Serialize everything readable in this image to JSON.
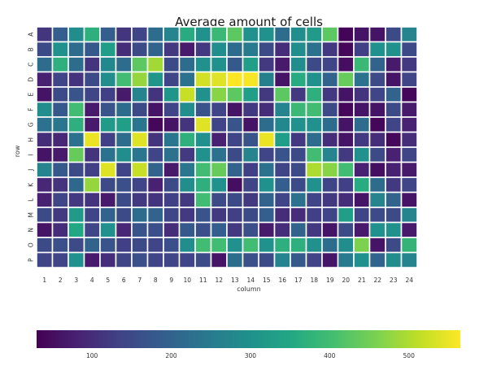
{
  "chart_data": {
    "type": "heatmap",
    "title": "Average amount of cells",
    "xlabel": "column",
    "ylabel": "row",
    "columns": [
      "1",
      "2",
      "3",
      "4",
      "5",
      "6",
      "7",
      "8",
      "9",
      "10",
      "11",
      "12",
      "13",
      "14",
      "15",
      "16",
      "17",
      "18",
      "19",
      "20",
      "21",
      "22",
      "23",
      "24"
    ],
    "rows": [
      "A",
      "B",
      "C",
      "D",
      "E",
      "F",
      "G",
      "H",
      "I",
      "J",
      "K",
      "L",
      "M",
      "N",
      "O",
      "P"
    ],
    "values": [
      [
        115,
        190,
        290,
        370,
        190,
        115,
        140,
        220,
        270,
        360,
        300,
        390,
        430,
        300,
        300,
        220,
        290,
        320,
        430,
        35,
        60,
        60,
        150,
        270
      ],
      [
        150,
        300,
        220,
        180,
        330,
        100,
        150,
        200,
        120,
        70,
        120,
        290,
        220,
        250,
        150,
        100,
        290,
        230,
        120,
        40,
        130,
        300,
        300,
        150
      ],
      [
        220,
        370,
        220,
        110,
        280,
        220,
        430,
        490,
        150,
        220,
        300,
        300,
        180,
        330,
        120,
        70,
        290,
        150,
        140,
        50,
        390,
        200,
        70,
        120
      ],
      [
        80,
        140,
        110,
        150,
        290,
        400,
        480,
        310,
        140,
        230,
        530,
        540,
        570,
        560,
        260,
        60,
        360,
        300,
        200,
        440,
        230,
        150,
        60,
        140
      ],
      [
        60,
        150,
        170,
        140,
        130,
        70,
        270,
        110,
        310,
        520,
        300,
        470,
        430,
        330,
        120,
        430,
        120,
        370,
        120,
        60,
        110,
        140,
        200,
        40
      ],
      [
        290,
        180,
        400,
        70,
        170,
        220,
        150,
        60,
        140,
        290,
        170,
        140,
        60,
        120,
        100,
        270,
        390,
        400,
        150,
        40,
        60,
        60,
        150,
        70
      ],
      [
        230,
        240,
        370,
        70,
        320,
        330,
        240,
        40,
        60,
        110,
        540,
        140,
        170,
        60,
        220,
        280,
        300,
        300,
        220,
        60,
        220,
        40,
        140,
        80
      ],
      [
        100,
        90,
        230,
        550,
        130,
        220,
        540,
        110,
        240,
        370,
        300,
        80,
        140,
        170,
        550,
        330,
        120,
        220,
        100,
        60,
        120,
        100,
        40,
        100
      ],
      [
        60,
        70,
        440,
        110,
        230,
        290,
        240,
        140,
        230,
        120,
        300,
        230,
        150,
        270,
        140,
        170,
        150,
        400,
        270,
        120,
        300,
        150,
        80,
        140
      ],
      [
        270,
        180,
        150,
        130,
        540,
        140,
        520,
        200,
        70,
        240,
        400,
        440,
        200,
        130,
        230,
        140,
        150,
        500,
        470,
        400,
        80,
        50,
        80,
        70
      ],
      [
        90,
        110,
        210,
        480,
        150,
        160,
        140,
        80,
        150,
        290,
        370,
        300,
        50,
        140,
        300,
        190,
        150,
        300,
        140,
        130,
        360,
        220,
        120,
        140
      ],
      [
        80,
        140,
        120,
        110,
        70,
        150,
        120,
        110,
        130,
        120,
        400,
        150,
        150,
        120,
        200,
        140,
        230,
        140,
        120,
        100,
        60,
        270,
        200,
        60
      ],
      [
        150,
        120,
        320,
        140,
        200,
        150,
        220,
        200,
        140,
        120,
        170,
        120,
        130,
        150,
        190,
        100,
        100,
        130,
        140,
        330,
        140,
        150,
        150,
        270
      ],
      [
        60,
        100,
        350,
        140,
        300,
        90,
        170,
        160,
        100,
        180,
        160,
        190,
        120,
        160,
        70,
        100,
        200,
        120,
        60,
        150,
        70,
        300,
        300,
        70
      ],
      [
        150,
        160,
        150,
        200,
        170,
        130,
        150,
        140,
        160,
        290,
        400,
        400,
        300,
        400,
        300,
        370,
        370,
        300,
        220,
        290,
        460,
        60,
        150,
        380
      ],
      [
        140,
        140,
        300,
        70,
        100,
        140,
        160,
        140,
        140,
        140,
        150,
        60,
        220,
        160,
        150,
        270,
        180,
        140,
        60,
        250,
        300,
        200,
        290,
        270
      ]
    ],
    "colorbar": {
      "ticks": [
        100,
        200,
        300,
        400,
        500
      ],
      "range": [
        30,
        565
      ],
      "colormap": "viridis"
    },
    "colors": {
      "viridis_low": "#440154",
      "viridis_mid": "#21918c",
      "viridis_high": "#fde725",
      "gridline": "#ffffff"
    }
  }
}
